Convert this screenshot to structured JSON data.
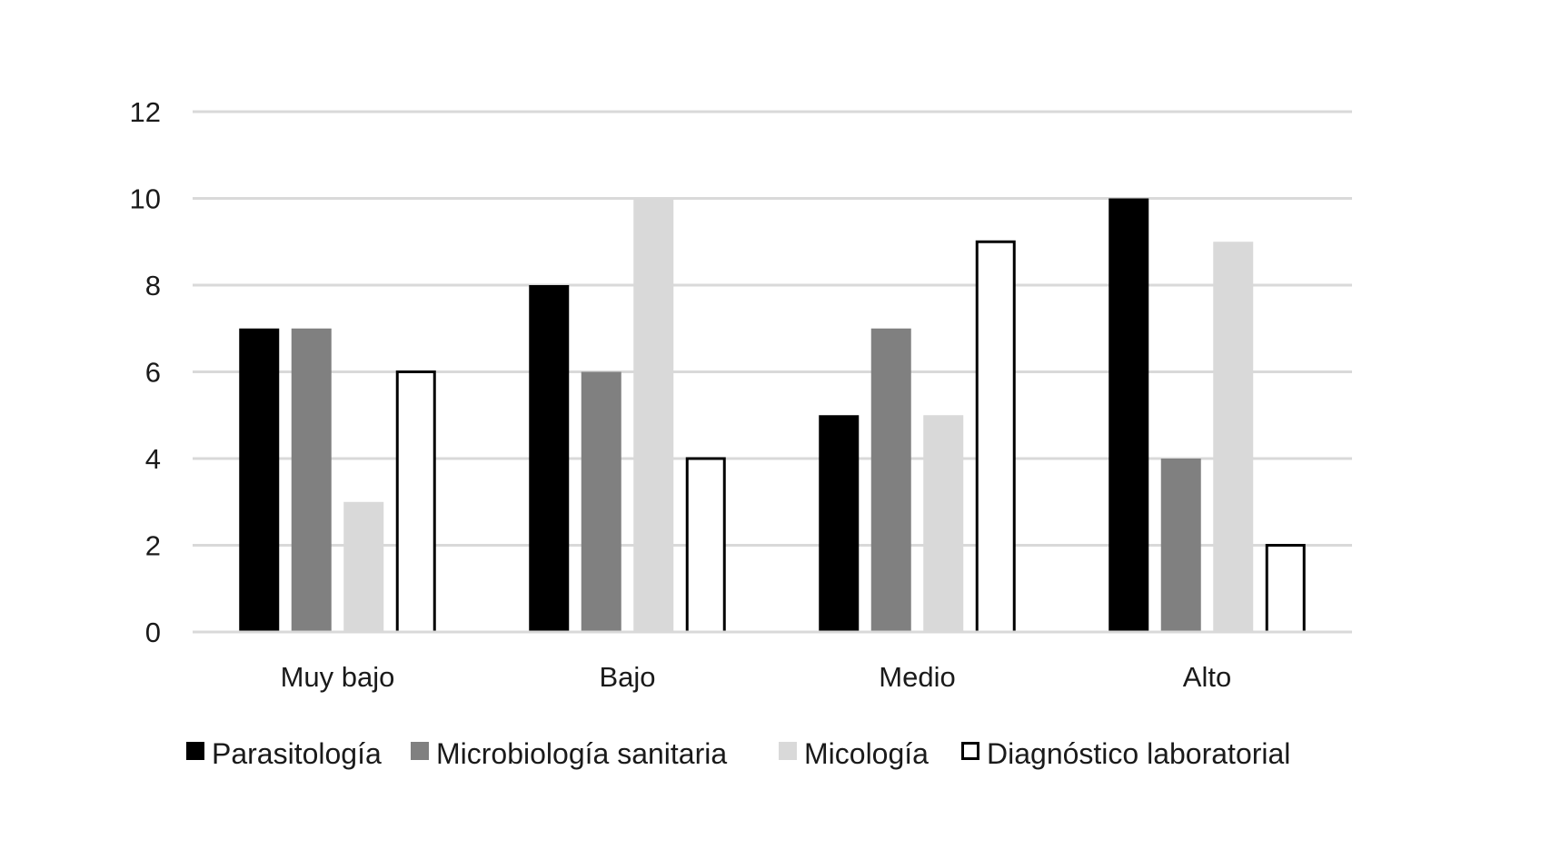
{
  "chart_data": {
    "type": "bar",
    "categories": [
      "Muy bajo",
      "Bajo",
      "Medio",
      "Alto"
    ],
    "series": [
      {
        "name": "Parasitología",
        "values": [
          7,
          8,
          5,
          10
        ],
        "fill": "#000000",
        "stroke": "none"
      },
      {
        "name": "Microbiología sanitaria",
        "values": [
          7,
          6,
          7,
          4
        ],
        "fill": "#808080",
        "stroke": "none"
      },
      {
        "name": "Micología",
        "values": [
          3,
          10,
          5,
          9
        ],
        "fill": "#d9d9d9",
        "stroke": "none"
      },
      {
        "name": "Diagnóstico laboratorial",
        "values": [
          6,
          4,
          9,
          2
        ],
        "fill": "#ffffff",
        "stroke": "#000000"
      }
    ],
    "ylim": [
      0,
      12
    ],
    "yticks": [
      0,
      2,
      4,
      6,
      8,
      10,
      12
    ],
    "grid": true,
    "gridColor": "#d9d9d9",
    "legend_position": "bottom"
  }
}
